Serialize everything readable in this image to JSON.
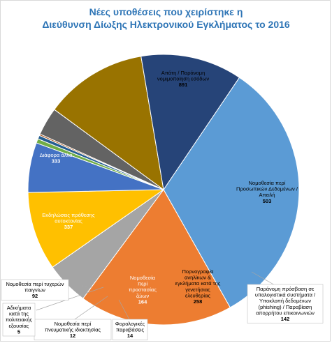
{
  "chart_data": {
    "type": "pie",
    "title": [
      "Νέες υποθέσεις που χειρίστηκε η",
      "Διεύθυνση Δίωξης Ηλεκτρονικού Εγκλήματος το 2016"
    ],
    "slices": [
      {
        "label": [
          "Απάτη / Παράνομη",
          "νομιμοποίηση εσόδων"
        ],
        "value": 891,
        "color": "#5b9bd5"
      },
      {
        "label": [
          "Νομοθεσία περί",
          "Προσωπικών Δεδομένων /",
          "Απειλή"
        ],
        "value": 503,
        "color": "#ed7d31"
      },
      {
        "label": [
          "Παράνομη πρόσβαση σε",
          "υπολογιστικά συστήματα /",
          "Υποκλοπή δεδομένων",
          "(phishing) / Παραβίαση",
          "απορρήτου επικοινωνιών"
        ],
        "value": 142,
        "color": "#a5a5a5"
      },
      {
        "label": [
          "Πορνογραφία",
          "ανηλίκων &",
          "εγκλήματα κατά της",
          "γενετήσιας",
          "ελευθερίας"
        ],
        "value": 258,
        "color": "#ffc000"
      },
      {
        "label": [
          "Νομοθεσία",
          "περί",
          "προστασίας",
          "ζώων"
        ],
        "value": 164,
        "color": "#4472c4"
      },
      {
        "label": [
          "Φορολογικές",
          "παραβάσεις"
        ],
        "value": 14,
        "color": "#70ad47"
      },
      {
        "label": [
          "Νομοθεσία περί",
          "πνευματικής ιδιοκτησίας"
        ],
        "value": 12,
        "color": "#255e91"
      },
      {
        "label": [
          "Αδικήματα",
          "κατά της",
          "πολιτειακής",
          "εξουσίας"
        ],
        "value": 5,
        "color": "#9e480e"
      },
      {
        "label": [
          "Νομοθεσία περί τυχερών",
          "παιγνίων"
        ],
        "value": 92,
        "color": "#636363"
      },
      {
        "label": [
          "Εκδηλώσεις πρόθεσης",
          "αυτοκτονίας"
        ],
        "value": 337,
        "color": "#997300"
      },
      {
        "label": [
          "Διάφορα άλλα"
        ],
        "value": 333,
        "color": "#264478"
      }
    ]
  }
}
